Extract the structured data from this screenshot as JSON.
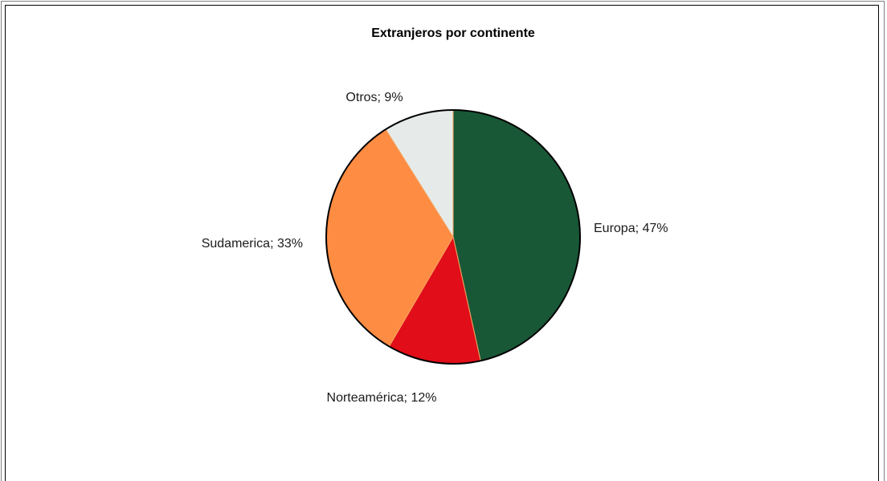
{
  "chart_data": {
    "type": "pie",
    "title": "Extranjeros por continente",
    "slices": [
      {
        "name": "Europa",
        "value": 47,
        "label": "Europa; 47%",
        "color": "#185837"
      },
      {
        "name": "Norteamérica",
        "value": 12,
        "label": "Norteamérica; 12%",
        "color": "#e10d18"
      },
      {
        "name": "Sudamerica",
        "value": 33,
        "label": "Sudamerica; 33%",
        "color": "#fe8c42"
      },
      {
        "name": "Otros",
        "value": 9,
        "label": "Otros; 9%",
        "color": "#e6ebe9"
      }
    ],
    "start": "12 o'clock",
    "direction": "clockwise"
  }
}
